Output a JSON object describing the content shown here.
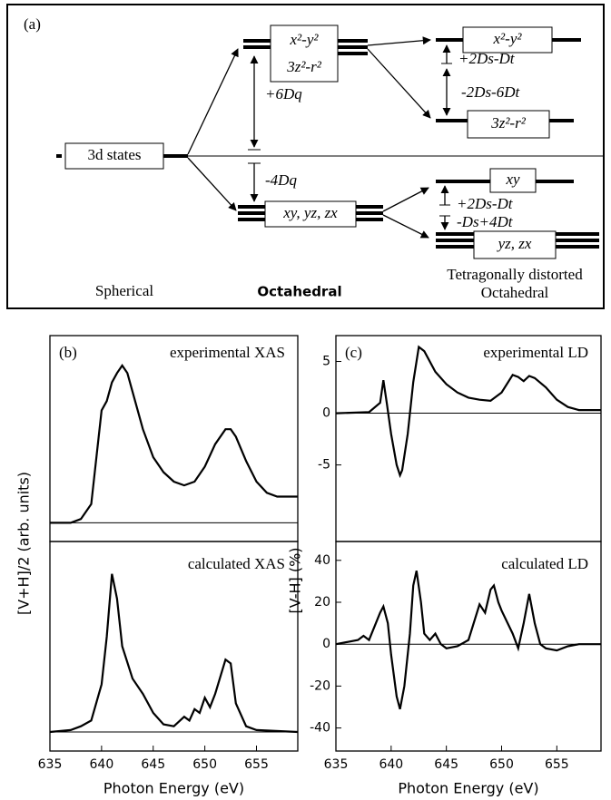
{
  "diagram": {
    "label": "(a)",
    "spherical_state": "3d states",
    "octahedral_upper": [
      "x²-y²",
      "3z²-r²"
    ],
    "octahedral_lower": "xy, yz, zx",
    "splitting_upper": "+6Dq",
    "splitting_lower": "-4Dq",
    "tetragonal_eg": {
      "upper": "x²-y²",
      "lower": "3z²-r²",
      "split_upper": "+2Ds-Dt",
      "split_lower": "-2Ds-6Dt"
    },
    "tetragonal_t2g": {
      "upper": "xy",
      "lower": "yz, zx",
      "split_upper": "+2Ds-Dt",
      "split_lower": "-Ds+4Dt"
    },
    "captions": {
      "spherical": "Spherical",
      "octahedral": "Octahedral",
      "tetragonal": [
        "Tetragonally distorted",
        "Octahedral"
      ]
    }
  },
  "chart_data": [
    {
      "type": "line",
      "title": "(b)",
      "annotation": "experimental XAS",
      "ylabel": "[V+H]/2 (arb. units)",
      "color": "#000000",
      "x": [
        635,
        637,
        638,
        639,
        639.5,
        640,
        640.5,
        641,
        641.5,
        642,
        642.5,
        643,
        644,
        645,
        646,
        647,
        648,
        649,
        650,
        651,
        652,
        652.5,
        653,
        654,
        655,
        656,
        657,
        659
      ],
      "values": [
        0,
        0,
        0.02,
        0.1,
        0.35,
        0.6,
        0.65,
        0.75,
        0.8,
        0.84,
        0.8,
        0.7,
        0.5,
        0.35,
        0.27,
        0.22,
        0.2,
        0.22,
        0.3,
        0.42,
        0.5,
        0.5,
        0.46,
        0.33,
        0.22,
        0.16,
        0.14,
        0.14
      ],
      "xlim": [
        635,
        659
      ],
      "ylim": [
        -0.1,
        1.0
      ],
      "baseline": 0
    },
    {
      "type": "line",
      "annotation": "calculated XAS",
      "xlabel": "Photon Energy (eV)",
      "color": "#000000",
      "x": [
        635,
        637,
        638,
        639,
        640,
        640.5,
        641,
        641.5,
        642,
        643,
        644,
        645,
        646,
        647,
        648,
        648.5,
        649,
        649.5,
        650,
        650.5,
        651,
        652,
        652.5,
        653,
        654,
        655,
        659
      ],
      "values": [
        0,
        0.01,
        0.03,
        0.06,
        0.25,
        0.5,
        0.83,
        0.7,
        0.45,
        0.28,
        0.2,
        0.1,
        0.04,
        0.03,
        0.08,
        0.06,
        0.12,
        0.1,
        0.18,
        0.13,
        0.2,
        0.38,
        0.36,
        0.15,
        0.03,
        0.01,
        0
      ],
      "xlim": [
        635,
        659
      ],
      "ylim": [
        -0.1,
        1.0
      ],
      "xticks": [
        635,
        640,
        645,
        650,
        655
      ],
      "baseline": 0
    },
    {
      "type": "line",
      "title": "(c)",
      "annotation": "experimental LD",
      "color": "#000000",
      "x": [
        635,
        638,
        639,
        639.3,
        639.6,
        640,
        640.5,
        640.8,
        641,
        641.5,
        642,
        642.5,
        643,
        644,
        645,
        646,
        647,
        648,
        649,
        650,
        651,
        651.5,
        652,
        652.5,
        653,
        654,
        655,
        656,
        657,
        659
      ],
      "values": [
        0,
        0.1,
        1,
        3.2,
        1,
        -2,
        -5,
        -6,
        -5.5,
        -2,
        3,
        6.4,
        6,
        4,
        2.8,
        2,
        1.5,
        1.3,
        1.2,
        2,
        3.7,
        3.5,
        3.1,
        3.6,
        3.4,
        2.5,
        1.3,
        0.6,
        0.3,
        0.3
      ],
      "xlim": [
        635,
        659
      ],
      "ylim": [
        -12.4,
        7.5
      ],
      "yticks": [
        -5,
        0,
        5
      ],
      "baseline": 0
    },
    {
      "type": "line",
      "annotation": "calculated LD",
      "ylabel": "[V-H] (%)",
      "xlabel": "Photon Energy (eV)",
      "color": "#000000",
      "x": [
        635,
        637,
        637.5,
        638,
        639,
        639.3,
        639.7,
        640,
        640.5,
        640.8,
        641.2,
        641.7,
        642,
        642.3,
        642.7,
        643,
        643.5,
        644,
        644.5,
        645,
        646,
        647,
        648,
        648.5,
        649,
        649.3,
        649.7,
        650,
        651,
        651.5,
        652,
        652.5,
        653,
        653.5,
        654,
        655,
        656,
        657,
        659
      ],
      "values": [
        0,
        2,
        4,
        2,
        15,
        18,
        10,
        -5,
        -25,
        -31,
        -20,
        5,
        28,
        35,
        20,
        5,
        2,
        5,
        0,
        -2,
        -1,
        2,
        19,
        15,
        26,
        28,
        20,
        16,
        5,
        -2,
        10,
        24,
        10,
        0,
        -2,
        -3,
        -1,
        0,
        0
      ],
      "xlim": [
        635,
        659
      ],
      "ylim": [
        -51,
        49
      ],
      "xticks": [
        635,
        640,
        645,
        650,
        655
      ],
      "yticks": [
        -40,
        -20,
        0,
        20,
        40
      ],
      "baseline": 0
    }
  ]
}
